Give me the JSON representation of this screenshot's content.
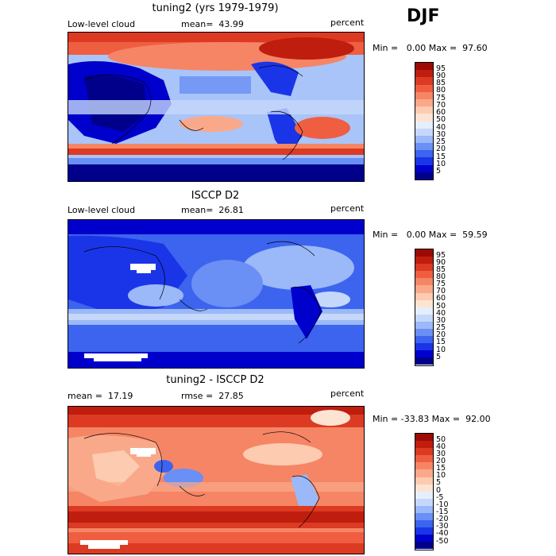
{
  "season": "DJF",
  "colors": {
    "scale_pos": [
      "#00008b",
      "#0000cd",
      "#1a35e8",
      "#3c64ef",
      "#6a8ff5",
      "#9bb8f8",
      "#c5d8fb",
      "#e6eefd",
      "#fde4d2",
      "#fccbb0",
      "#f9a98a",
      "#f68565",
      "#f05e42",
      "#dc3a22",
      "#bf1d0e",
      "#9c0a05"
    ],
    "scale_diff": [
      "#00008b",
      "#0000cd",
      "#1a35e8",
      "#3c64ef",
      "#6a8ff5",
      "#9bb8f8",
      "#c5d8fb",
      "#e6eefd",
      "#fde4d2",
      "#fccbb0",
      "#f9a98a",
      "#f68565",
      "#f05e42",
      "#dc3a22",
      "#bf1d0e",
      "#9c0a05"
    ]
  },
  "panels": [
    {
      "title": "tuning2 (yrs 1979-1979)",
      "left_label": "Low-level cloud",
      "mean_label": "mean=  43.99",
      "units": "percent",
      "minmax": "Min =   0.00 Max =  97.60",
      "ticks": [
        "95",
        "90",
        "85",
        "80",
        "75",
        "70",
        "60",
        "50",
        "40",
        "30",
        "25",
        "20",
        "15",
        "10",
        "5"
      ]
    },
    {
      "title": "ISCCP D2",
      "left_label": "Low-level cloud",
      "mean_label": "mean=  26.81",
      "units": "percent",
      "minmax": "Min =   0.00 Max =  59.59",
      "ticks": [
        "95",
        "90",
        "85",
        "80",
        "75",
        "70",
        "60",
        "50",
        "40",
        "30",
        "25",
        "20",
        "15",
        "10",
        "5"
      ]
    },
    {
      "title": "tuning2 - ISCCP D2",
      "left_label": "mean =  17.19",
      "mean_label": "rmse =  27.85",
      "units": "percent",
      "minmax": "Min = -33.83 Max =  92.00",
      "ticks": [
        "50",
        "40",
        "30",
        "20",
        "15",
        "10",
        "5",
        "0",
        "-5",
        "-10",
        "-15",
        "-20",
        "-30",
        "-40",
        "-50"
      ]
    }
  ]
}
